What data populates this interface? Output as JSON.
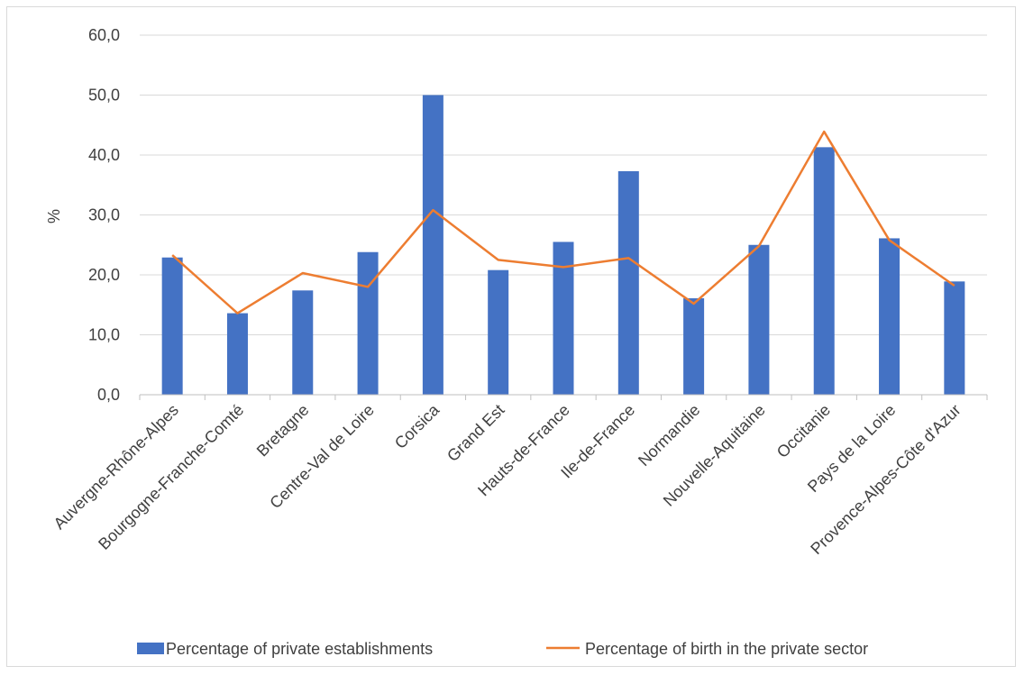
{
  "chart_data": {
    "type": "bar",
    "ylabel": "%",
    "xlabel": "",
    "ylim": [
      0,
      60
    ],
    "yticks": [
      "0,0",
      "10,0",
      "20,0",
      "30,0",
      "40,0",
      "50,0",
      "60,0"
    ],
    "grid": true,
    "legend_position": "bottom",
    "categories": [
      "Auvergne-Rhône-Alpes",
      "Bourgogne-Franche-Comté",
      "Bretagne",
      "Centre-Val de Loire",
      "Corsica",
      "Grand Est",
      "Hauts-de-France",
      "Ile-de-France",
      "Normandie",
      "Nouvelle-Aquitaine",
      "Occitanie",
      "Pays de la Loire",
      "Provence-Alpes-Côte d'Azur"
    ],
    "series": [
      {
        "name": "Percentage of private establishments",
        "type": "bar",
        "color": "#4472c4",
        "values": [
          22.9,
          13.6,
          17.4,
          23.8,
          50.0,
          20.8,
          25.5,
          37.3,
          16.1,
          25.0,
          41.3,
          26.1,
          18.9
        ]
      },
      {
        "name": "Percentage of birth in the private sector",
        "type": "line",
        "color": "#ed7d31",
        "values": [
          23.3,
          13.6,
          20.3,
          18.0,
          30.8,
          22.5,
          21.3,
          22.8,
          15.2,
          24.8,
          43.9,
          25.8,
          18.2
        ]
      }
    ]
  }
}
